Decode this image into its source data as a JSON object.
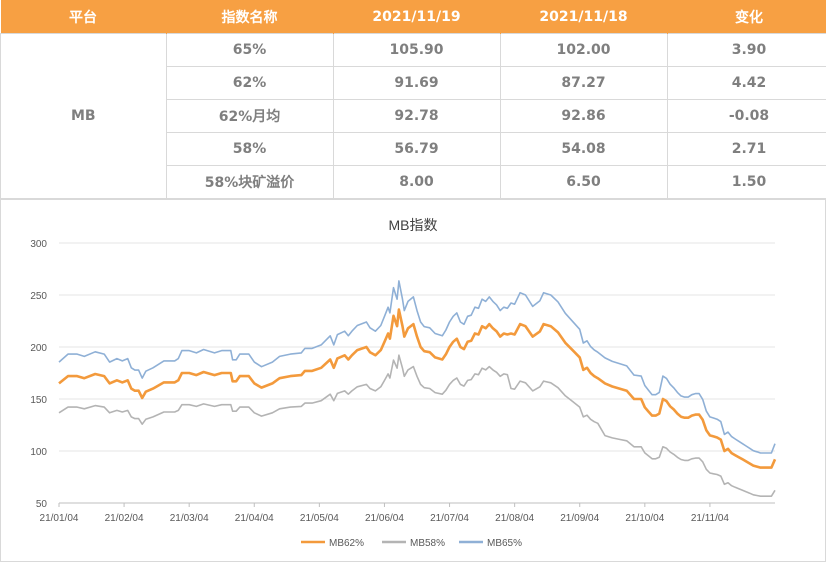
{
  "table": {
    "headers": [
      "平台",
      "指数名称",
      "2021/11/19",
      "2021/11/18",
      "变化"
    ],
    "platform": "MB",
    "rows": [
      {
        "name": "65%",
        "v1": "105.90",
        "v2": "102.00",
        "change": "3.90",
        "dir": "up"
      },
      {
        "name": "62%",
        "v1": "91.69",
        "v2": "87.27",
        "change": "4.42",
        "dir": "up"
      },
      {
        "name": "62%月均",
        "v1": "92.78",
        "v2": "92.86",
        "change": "-0.08",
        "dir": "down"
      },
      {
        "name": "58%",
        "v1": "56.79",
        "v2": "54.08",
        "change": "2.71",
        "dir": "up"
      },
      {
        "name": "58%块矿溢价",
        "v1": "8.00",
        "v2": "6.50",
        "change": "1.50",
        "dir": "up"
      }
    ],
    "colors": {
      "header_bg": "#f7a043",
      "up": "#e00000",
      "down": "#00a550"
    }
  },
  "chart_data": {
    "type": "line",
    "title": "MB指数",
    "y_ticks": [
      "300",
      "250",
      "200",
      "150",
      "100",
      "50"
    ],
    "ylim": [
      50,
      300
    ],
    "x_ticks": [
      "21/01/04",
      "21/02/04",
      "21/03/04",
      "21/04/04",
      "21/05/04",
      "21/06/04",
      "21/07/04",
      "21/08/04",
      "21/09/04",
      "21/10/04",
      "21/11/04"
    ],
    "x_range_days": [
      0,
      323
    ],
    "series": [
      {
        "name": "MB62%",
        "color": "#f39a3c",
        "points": [
          [
            0,
            165
          ],
          [
            5,
            172
          ],
          [
            10,
            172
          ],
          [
            14,
            170
          ],
          [
            20,
            174
          ],
          [
            25,
            172
          ],
          [
            28,
            165
          ],
          [
            32,
            168
          ],
          [
            35,
            166
          ],
          [
            38,
            168
          ],
          [
            40,
            160
          ],
          [
            42,
            158
          ],
          [
            44,
            158
          ],
          [
            46,
            151
          ],
          [
            48,
            157
          ],
          [
            52,
            160
          ],
          [
            58,
            166
          ],
          [
            64,
            166
          ],
          [
            66,
            168
          ],
          [
            68,
            175
          ],
          [
            72,
            175
          ],
          [
            76,
            173
          ],
          [
            80,
            176
          ],
          [
            86,
            173
          ],
          [
            90,
            175
          ],
          [
            95,
            175
          ],
          [
            96,
            167
          ],
          [
            98,
            167
          ],
          [
            100,
            172
          ],
          [
            105,
            172
          ],
          [
            108,
            165
          ],
          [
            112,
            161
          ],
          [
            118,
            165
          ],
          [
            122,
            170
          ],
          [
            128,
            172
          ],
          [
            134,
            173
          ],
          [
            136,
            177
          ],
          [
            140,
            177
          ],
          [
            145,
            180
          ],
          [
            150,
            188
          ],
          [
            152,
            180
          ],
          [
            154,
            189
          ],
          [
            158,
            192
          ],
          [
            160,
            188
          ],
          [
            162,
            192
          ],
          [
            165,
            197
          ],
          [
            170,
            200
          ],
          [
            172,
            195
          ],
          [
            175,
            192
          ],
          [
            178,
            197
          ],
          [
            180,
            205
          ],
          [
            182,
            213
          ],
          [
            183,
            208
          ],
          [
            185,
            230
          ],
          [
            187,
            220
          ],
          [
            188,
            236
          ],
          [
            190,
            220
          ],
          [
            191,
            210
          ],
          [
            193,
            218
          ],
          [
            196,
            222
          ],
          [
            198,
            210
          ],
          [
            200,
            200
          ],
          [
            202,
            196
          ],
          [
            205,
            195
          ],
          [
            208,
            190
          ],
          [
            212,
            188
          ],
          [
            214,
            193
          ],
          [
            216,
            200
          ],
          [
            218,
            205
          ],
          [
            220,
            208
          ],
          [
            222,
            200
          ],
          [
            224,
            198
          ],
          [
            226,
            205
          ],
          [
            228,
            206
          ],
          [
            230,
            213
          ],
          [
            232,
            212
          ],
          [
            234,
            220
          ],
          [
            236,
            218
          ],
          [
            238,
            222
          ],
          [
            240,
            218
          ],
          [
            242,
            215
          ],
          [
            244,
            210
          ],
          [
            246,
            213
          ],
          [
            248,
            212
          ],
          [
            250,
            213
          ],
          [
            252,
            212
          ],
          [
            255,
            222
          ],
          [
            258,
            220
          ],
          [
            262,
            210
          ],
          [
            266,
            215
          ],
          [
            268,
            222
          ],
          [
            272,
            220
          ],
          [
            276,
            214
          ],
          [
            280,
            204
          ],
          [
            284,
            197
          ],
          [
            288,
            190
          ],
          [
            290,
            178
          ],
          [
            292,
            180
          ],
          [
            294,
            175
          ],
          [
            296,
            172
          ],
          [
            298,
            170
          ],
          [
            302,
            165
          ],
          [
            306,
            162
          ],
          [
            310,
            160
          ],
          [
            314,
            158
          ],
          [
            318,
            150
          ],
          [
            322,
            150
          ],
          [
            324,
            142
          ],
          [
            326,
            138
          ],
          [
            328,
            134
          ],
          [
            330,
            134
          ],
          [
            332,
            136
          ],
          [
            334,
            150
          ],
          [
            336,
            148
          ],
          [
            338,
            143
          ],
          [
            340,
            140
          ],
          [
            342,
            136
          ],
          [
            344,
            133
          ],
          [
            346,
            132
          ],
          [
            348,
            132
          ],
          [
            350,
            134
          ],
          [
            352,
            135
          ],
          [
            354,
            135
          ],
          [
            356,
            130
          ],
          [
            358,
            120
          ],
          [
            360,
            115
          ],
          [
            362,
            114
          ],
          [
            364,
            113
          ],
          [
            366,
            111
          ],
          [
            368,
            100
          ],
          [
            370,
            102
          ],
          [
            372,
            98
          ],
          [
            374,
            96
          ],
          [
            376,
            94
          ],
          [
            378,
            92
          ],
          [
            380,
            90
          ],
          [
            382,
            88
          ],
          [
            384,
            86
          ],
          [
            386,
            85
          ],
          [
            388,
            84
          ],
          [
            390,
            84
          ],
          [
            392,
            84
          ],
          [
            394,
            84
          ],
          [
            396,
            92
          ]
        ]
      },
      {
        "name": "MB58%",
        "color": "#b4b4b4",
        "points": []
      },
      {
        "name": "MB65%",
        "color": "#8fb0d6",
        "points": []
      }
    ]
  }
}
